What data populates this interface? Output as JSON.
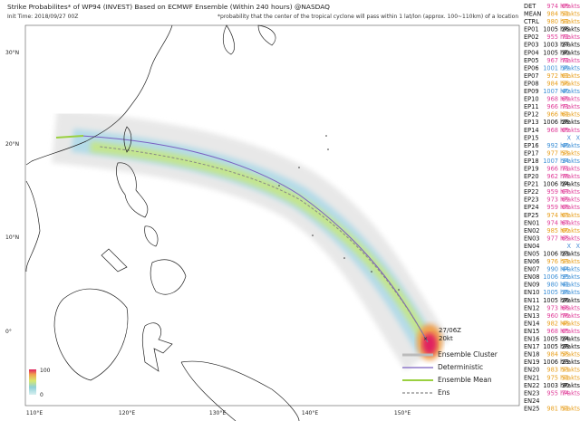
{
  "header": {
    "title": "Strike Probabilites* of WP94 (INVEST) Based on ECMWF Ensemble (Within 240 hours) @NASDAQ",
    "init_time": "Init Time: 2018/09/27 00Z",
    "footnote": "*probability that the center of the tropical cyclone will pass within 1 lat/lon (approx. 100~110km) of a location"
  },
  "map": {
    "lat_labels": [
      "30°N",
      "20°N",
      "10°N",
      "0°"
    ],
    "lon_labels": [
      "110°E",
      "120°E",
      "130°E",
      "140°E",
      "150°E"
    ],
    "storm_label": {
      "time": "27/06Z",
      "wind": "20kt"
    },
    "colorbar": {
      "max": "100",
      "min": "0"
    }
  },
  "legend": [
    "Ensemble Cluster",
    "Deterministic",
    "Ensemble Mean",
    "Ens"
  ],
  "table": {
    "rows": [
      {
        "name": "DET",
        "pressure": "974 hPa",
        "wind": "69 kts"
      },
      {
        "name": "MEAN",
        "pressure": "984 hPa",
        "wind": "52 kts"
      },
      {
        "name": "CTRL",
        "pressure": "980 hPa",
        "wind": "52 kts"
      },
      {
        "name": "EP01",
        "pressure": "1005 hPa",
        "wind": "26 kts"
      },
      {
        "name": "EP02",
        "pressure": "955 hPa",
        "wind": "72 kts"
      },
      {
        "name": "EP03",
        "pressure": "1003 hPa",
        "wind": "27 kts"
      },
      {
        "name": "EP04",
        "pressure": "1005 hPa",
        "wind": "30 kts"
      },
      {
        "name": "EP05",
        "pressure": "967 hPa",
        "wind": "72 kts"
      },
      {
        "name": "EP06",
        "pressure": "1001 hPa",
        "wind": "39 kts"
      },
      {
        "name": "EP07",
        "pressure": "972 hPa",
        "wind": "62 kts"
      },
      {
        "name": "EP08",
        "pressure": "984 hPa",
        "wind": "56 kts"
      },
      {
        "name": "EP09",
        "pressure": "1007 hPa",
        "wind": "40 kts"
      },
      {
        "name": "EP10",
        "pressure": "968 hPa",
        "wind": "69 kts"
      },
      {
        "name": "EP11",
        "pressure": "966 hPa",
        "wind": "71 kts"
      },
      {
        "name": "EP12",
        "pressure": "966 hPa",
        "wind": "62 kts"
      },
      {
        "name": "EP13",
        "pressure": "1006 hPa",
        "wind": "28 kts"
      },
      {
        "name": "EP14",
        "pressure": "968 hPa",
        "wind": "69 kts"
      },
      {
        "name": "EP15",
        "pressure": "X",
        "wind": "X"
      },
      {
        "name": "EP16",
        "pressure": "992 hPa",
        "wind": "46 kts"
      },
      {
        "name": "EP17",
        "pressure": "977 hPa",
        "wind": "53 kts"
      },
      {
        "name": "EP18",
        "pressure": "1007 hPa",
        "wind": "34 kts"
      },
      {
        "name": "EP19",
        "pressure": "966 hPa",
        "wind": "71 kts"
      },
      {
        "name": "EP20",
        "pressure": "962 hPa",
        "wind": "78 kts"
      },
      {
        "name": "EP21",
        "pressure": "1006 hPa",
        "wind": "24 kts"
      },
      {
        "name": "EP22",
        "pressure": "959 hPa",
        "wind": "67 kts"
      },
      {
        "name": "EP23",
        "pressure": "973 hPa",
        "wind": "69 kts"
      },
      {
        "name": "EP24",
        "pressure": "959 hPa",
        "wind": "68 kts"
      },
      {
        "name": "EP25",
        "pressure": "974 hPa",
        "wind": "63 kts"
      },
      {
        "name": "EN01",
        "pressure": "974 hPa",
        "wind": "67 kts"
      },
      {
        "name": "EN02",
        "pressure": "985 hPa",
        "wind": "60 kts"
      },
      {
        "name": "EN03",
        "pressure": "977 hPa",
        "wind": "65 kts"
      },
      {
        "name": "EN04",
        "pressure": "X",
        "wind": "X"
      },
      {
        "name": "EN05",
        "pressure": "1006 hPa",
        "wind": "23 kts"
      },
      {
        "name": "EN06",
        "pressure": "976 hPa",
        "wind": "53 kts"
      },
      {
        "name": "EN07",
        "pressure": "990 hPa",
        "wind": "44 kts"
      },
      {
        "name": "EN08",
        "pressure": "1006 hPa",
        "wind": "35 kts"
      },
      {
        "name": "EN09",
        "pressure": "980 hPa",
        "wind": "42 kts"
      },
      {
        "name": "EN10",
        "pressure": "1005 hPa",
        "wind": "38 kts"
      },
      {
        "name": "EN11",
        "pressure": "1005 hPa",
        "wind": "26 kts"
      },
      {
        "name": "EN12",
        "pressure": "973 hPa",
        "wind": "66 kts"
      },
      {
        "name": "EN13",
        "pressure": "960 hPa",
        "wind": "76 kts"
      },
      {
        "name": "EN14",
        "pressure": "982 hPa",
        "wind": "48 kts"
      },
      {
        "name": "EN15",
        "pressure": "968 hPa",
        "wind": "65 kts"
      },
      {
        "name": "EN16",
        "pressure": "1005 hPa",
        "wind": "24 kts"
      },
      {
        "name": "EN17",
        "pressure": "1005 hPa",
        "wind": "28 kts"
      },
      {
        "name": "EN18",
        "pressure": "984 hPa",
        "wind": "55 kts"
      },
      {
        "name": "EN19",
        "pressure": "1006 hPa",
        "wind": "23 kts"
      },
      {
        "name": "EN20",
        "pressure": "983 hPa",
        "wind": "53 kts"
      },
      {
        "name": "EN21",
        "pressure": "975 hPa",
        "wind": "52 kts"
      },
      {
        "name": "EN22",
        "pressure": "1003 hPa",
        "wind": "30 kts"
      },
      {
        "name": "EN23",
        "pressure": "955 hPa",
        "wind": "74 kts"
      },
      {
        "name": "EN24"
      },
      {
        "name": "EN25",
        "pressure": "981 hPa",
        "wind": "52 kts"
      }
    ]
  }
}
